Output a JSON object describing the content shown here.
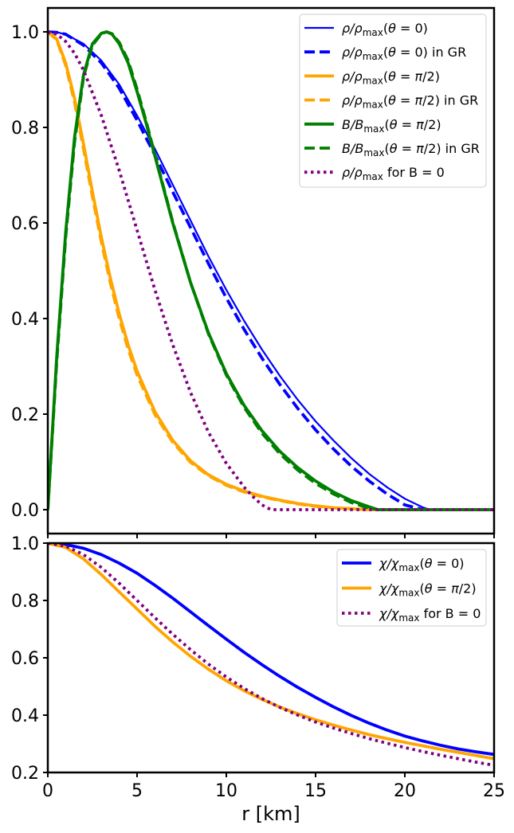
{
  "chart_data": [
    {
      "type": "line",
      "panel": "top",
      "title": "",
      "xlabel": "",
      "ylabel": "",
      "xlim": [
        0,
        25
      ],
      "ylim": [
        -0.05,
        1.05
      ],
      "xticks": [
        0,
        5,
        10,
        15,
        20,
        25
      ],
      "yticks": [
        0.0,
        0.2,
        0.4,
        0.6,
        0.8,
        1.0
      ],
      "ytick_labels": [
        "0.0",
        "0.2",
        "0.4",
        "0.6",
        "0.8",
        "1.0"
      ],
      "grid": false,
      "legend": "top-right",
      "series": [
        {
          "name": "ρ/ρmax(θ = 0)",
          "legend_parts": [
            {
              "t": "ρ/ρ",
              "i": true
            },
            {
              "t": "max",
              "sub": true
            },
            {
              "t": "(",
              "i": false
            },
            {
              "t": "θ",
              "i": true
            },
            {
              "t": " = 0)",
              "i": false
            }
          ],
          "color": "#0000ff",
          "style": "solid",
          "width": 2.2,
          "x": [
            0,
            0.5,
            1,
            2,
            3,
            4,
            5,
            6,
            7,
            8,
            9,
            10,
            11,
            12,
            13,
            14,
            15,
            16,
            17,
            18,
            19,
            20,
            21,
            21.4,
            22,
            25
          ],
          "y": [
            1.0,
            0.999,
            0.995,
            0.975,
            0.94,
            0.89,
            0.825,
            0.755,
            0.68,
            0.605,
            0.53,
            0.46,
            0.395,
            0.335,
            0.28,
            0.23,
            0.185,
            0.145,
            0.108,
            0.075,
            0.047,
            0.023,
            0.005,
            0.0,
            0.0,
            0.0
          ]
        },
        {
          "name": "ρ/ρmax(θ = 0) in GR",
          "legend_parts": [
            {
              "t": "ρ/ρ",
              "i": true
            },
            {
              "t": "max",
              "sub": true
            },
            {
              "t": "(",
              "i": false
            },
            {
              "t": "θ",
              "i": true
            },
            {
              "t": " = 0) in GR",
              "i": false
            }
          ],
          "color": "#0000ff",
          "style": "dashed",
          "width": 3.8,
          "x": [
            0,
            0.5,
            1,
            2,
            3,
            4,
            5,
            6,
            7,
            8,
            9,
            10,
            11,
            12,
            13,
            14,
            15,
            16,
            17,
            18,
            19,
            20,
            21,
            22,
            25
          ],
          "y": [
            1.0,
            0.999,
            0.995,
            0.972,
            0.935,
            0.882,
            0.815,
            0.742,
            0.665,
            0.59,
            0.515,
            0.443,
            0.377,
            0.317,
            0.262,
            0.212,
            0.167,
            0.127,
            0.091,
            0.06,
            0.033,
            0.01,
            0.0,
            0.0,
            0.0
          ]
        },
        {
          "name": "ρ/ρmax(θ = π/2)",
          "legend_parts": [
            {
              "t": "ρ/ρ",
              "i": true
            },
            {
              "t": "max",
              "sub": true
            },
            {
              "t": "(",
              "i": false
            },
            {
              "t": "θ",
              "i": true
            },
            {
              "t": " = ",
              "i": false
            },
            {
              "t": "π",
              "i": true
            },
            {
              "t": "/2)",
              "i": false
            }
          ],
          "color": "#ffa500",
          "style": "solid",
          "width": 3.8,
          "x": [
            0,
            0.5,
            1,
            1.5,
            2,
            2.5,
            3,
            3.5,
            4,
            4.5,
            5,
            6,
            7,
            8,
            9,
            10,
            11,
            12,
            13,
            14,
            15,
            16,
            17,
            18,
            19,
            20,
            25
          ],
          "y": [
            1.0,
            0.985,
            0.935,
            0.86,
            0.765,
            0.665,
            0.57,
            0.485,
            0.41,
            0.345,
            0.29,
            0.205,
            0.145,
            0.102,
            0.073,
            0.053,
            0.039,
            0.028,
            0.02,
            0.013,
            0.008,
            0.004,
            0.002,
            0.0,
            0.0,
            0.0,
            0.0
          ]
        },
        {
          "name": "ρ/ρmax(θ = π/2) in GR",
          "legend_parts": [
            {
              "t": "ρ/ρ",
              "i": true
            },
            {
              "t": "max",
              "sub": true
            },
            {
              "t": "(",
              "i": false
            },
            {
              "t": "θ",
              "i": true
            },
            {
              "t": " = ",
              "i": false
            },
            {
              "t": "π",
              "i": true
            },
            {
              "t": "/2) in GR",
              "i": false
            }
          ],
          "color": "#ffa500",
          "style": "dashed",
          "width": 3.8,
          "x": [
            0,
            0.5,
            1,
            1.5,
            2,
            2.5,
            3,
            3.5,
            4,
            4.5,
            5,
            6,
            7,
            8,
            9,
            10,
            11,
            12,
            13,
            14,
            15,
            16,
            17,
            18,
            19,
            20,
            25
          ],
          "y": [
            1.0,
            0.983,
            0.93,
            0.852,
            0.755,
            0.655,
            0.56,
            0.475,
            0.4,
            0.336,
            0.282,
            0.199,
            0.141,
            0.099,
            0.071,
            0.051,
            0.037,
            0.027,
            0.019,
            0.012,
            0.007,
            0.004,
            0.002,
            0.0,
            0.0,
            0.0,
            0.0
          ]
        },
        {
          "name": "B/Bmax(θ = π/2)",
          "legend_parts": [
            {
              "t": "B/B",
              "i": true
            },
            {
              "t": "max",
              "sub": true
            },
            {
              "t": "(",
              "i": false
            },
            {
              "t": "θ",
              "i": true
            },
            {
              "t": " = ",
              "i": false
            },
            {
              "t": "π",
              "i": true
            },
            {
              "t": "/2)",
              "i": false
            }
          ],
          "color": "#008000",
          "style": "solid",
          "width": 3.8,
          "x": [
            0,
            0.5,
            1,
            1.5,
            2,
            2.5,
            3,
            3.3,
            3.6,
            4,
            4.5,
            5,
            5.5,
            6,
            7,
            8,
            9,
            10,
            11,
            12,
            13,
            14,
            15,
            16,
            17,
            18,
            18.5,
            19,
            25
          ],
          "y": [
            0.0,
            0.32,
            0.58,
            0.78,
            0.91,
            0.975,
            0.997,
            1.0,
            0.995,
            0.975,
            0.935,
            0.875,
            0.81,
            0.74,
            0.6,
            0.475,
            0.37,
            0.285,
            0.218,
            0.165,
            0.122,
            0.088,
            0.06,
            0.037,
            0.019,
            0.006,
            0.0,
            0.0,
            0.0
          ]
        },
        {
          "name": "B/Bmax(θ = π/2) in GR",
          "legend_parts": [
            {
              "t": "B/B",
              "i": true
            },
            {
              "t": "max",
              "sub": true
            },
            {
              "t": "(",
              "i": false
            },
            {
              "t": "θ",
              "i": true
            },
            {
              "t": " = ",
              "i": false
            },
            {
              "t": "π",
              "i": true
            },
            {
              "t": "/2) in GR",
              "i": false
            }
          ],
          "color": "#008000",
          "style": "dashed",
          "width": 3.8,
          "x": [
            0,
            0.5,
            1,
            1.5,
            2,
            2.5,
            3,
            3.3,
            3.6,
            4,
            4.5,
            5,
            5.5,
            6,
            7,
            8,
            9,
            10,
            11,
            12,
            13,
            14,
            15,
            16,
            17,
            18,
            18.5,
            19,
            25
          ],
          "y": [
            0.0,
            0.31,
            0.57,
            0.77,
            0.905,
            0.972,
            0.996,
            1.0,
            0.996,
            0.978,
            0.94,
            0.88,
            0.814,
            0.743,
            0.602,
            0.475,
            0.368,
            0.282,
            0.214,
            0.16,
            0.117,
            0.083,
            0.055,
            0.033,
            0.015,
            0.003,
            0.0,
            0.0,
            0.0
          ]
        },
        {
          "name": "ρ/ρmax for B = 0",
          "legend_parts": [
            {
              "t": "ρ/ρ",
              "i": true
            },
            {
              "t": "max",
              "sub": true
            },
            {
              "t": " for B = 0",
              "i": false
            }
          ],
          "color": "#800080",
          "style": "dotted",
          "width": 3.8,
          "x": [
            0,
            0.5,
            1,
            1.5,
            2,
            3,
            4,
            5,
            6,
            7,
            8,
            9,
            10,
            11,
            11.5,
            12,
            12.5,
            13,
            25
          ],
          "y": [
            1.0,
            0.995,
            0.98,
            0.955,
            0.92,
            0.825,
            0.71,
            0.585,
            0.46,
            0.345,
            0.245,
            0.162,
            0.097,
            0.047,
            0.027,
            0.01,
            0.0,
            0.0,
            0.0
          ]
        }
      ]
    },
    {
      "type": "line",
      "panel": "bottom",
      "title": "",
      "xlabel": "r [km]",
      "ylabel": "",
      "xlim": [
        0,
        25
      ],
      "ylim": [
        0.2,
        1.0
      ],
      "xticks": [
        0,
        5,
        10,
        15,
        20,
        25
      ],
      "xtick_labels": [
        "0",
        "5",
        "10",
        "15",
        "20",
        "25"
      ],
      "yticks": [
        0.2,
        0.4,
        0.6,
        0.8,
        1.0
      ],
      "ytick_labels": [
        "0.2",
        "0.4",
        "0.6",
        "0.8",
        "1.0"
      ],
      "grid": false,
      "legend": "top-right",
      "series": [
        {
          "name": "χ/χmax(θ = 0)",
          "legend_parts": [
            {
              "t": "χ/χ",
              "i": true
            },
            {
              "t": "max",
              "sub": true
            },
            {
              "t": "(",
              "i": false
            },
            {
              "t": "θ",
              "i": true
            },
            {
              "t": " = 0)",
              "i": false
            }
          ],
          "color": "#0000ff",
          "style": "solid",
          "width": 3.8,
          "x": [
            0,
            1,
            2,
            3,
            4,
            5,
            6,
            7,
            8,
            9,
            10,
            11,
            12,
            13,
            14,
            15,
            16,
            17,
            18,
            19,
            20,
            21,
            22,
            23,
            24,
            25
          ],
          "y": [
            1.0,
            0.995,
            0.982,
            0.96,
            0.93,
            0.895,
            0.853,
            0.808,
            0.76,
            0.712,
            0.665,
            0.619,
            0.576,
            0.535,
            0.497,
            0.462,
            0.429,
            0.399,
            0.372,
            0.348,
            0.327,
            0.31,
            0.295,
            0.282,
            0.272,
            0.263
          ]
        },
        {
          "name": "χ/χmax(θ = π/2)",
          "legend_parts": [
            {
              "t": "χ/χ",
              "i": true
            },
            {
              "t": "max",
              "sub": true
            },
            {
              "t": "(",
              "i": false
            },
            {
              "t": "θ",
              "i": true
            },
            {
              "t": " = ",
              "i": false
            },
            {
              "t": "π",
              "i": true
            },
            {
              "t": "/2)",
              "i": false
            }
          ],
          "color": "#ffa500",
          "style": "solid",
          "width": 3.8,
          "x": [
            0,
            1,
            2,
            3,
            4,
            5,
            6,
            7,
            8,
            9,
            10,
            11,
            12,
            13,
            14,
            15,
            16,
            17,
            18,
            19,
            20,
            21,
            22,
            23,
            24,
            25
          ],
          "y": [
            1.0,
            0.985,
            0.945,
            0.89,
            0.83,
            0.77,
            0.71,
            0.655,
            0.605,
            0.56,
            0.52,
            0.485,
            0.455,
            0.428,
            0.405,
            0.384,
            0.365,
            0.348,
            0.332,
            0.318,
            0.305,
            0.293,
            0.281,
            0.27,
            0.259,
            0.248
          ]
        },
        {
          "name": "χ/χmax for B = 0",
          "legend_parts": [
            {
              "t": "χ/χ",
              "i": true
            },
            {
              "t": "max",
              "sub": true
            },
            {
              "t": " for B = 0",
              "i": false
            }
          ],
          "color": "#800080",
          "style": "dotted",
          "width": 3.8,
          "x": [
            0,
            1,
            2,
            3,
            4,
            5,
            6,
            7,
            8,
            9,
            10,
            11,
            12,
            13,
            14,
            15,
            16,
            17,
            18,
            19,
            20,
            21,
            22,
            23,
            24,
            25
          ],
          "y": [
            1.0,
            0.99,
            0.96,
            0.915,
            0.86,
            0.8,
            0.74,
            0.682,
            0.628,
            0.578,
            0.533,
            0.493,
            0.458,
            0.427,
            0.4,
            0.376,
            0.355,
            0.336,
            0.318,
            0.302,
            0.287,
            0.273,
            0.26,
            0.248,
            0.236,
            0.225
          ]
        }
      ]
    }
  ]
}
